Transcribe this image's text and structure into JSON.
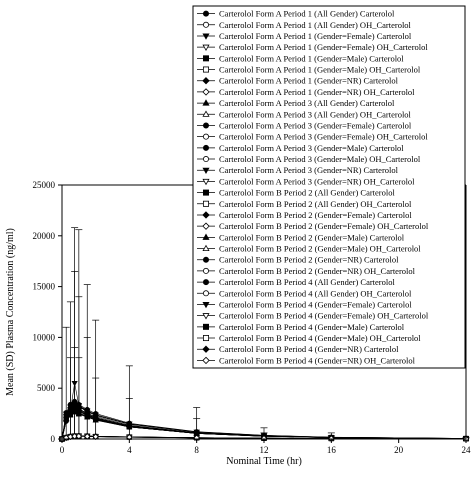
{
  "chart_data": {
    "type": "line",
    "xlabel": "Nominal Time (hr)",
    "ylabel": "Mean (SD) Plasma Concentration (ng/ml)",
    "xlim": [
      0,
      24
    ],
    "ylim": [
      0,
      25000
    ],
    "x_ticks": [
      0,
      4,
      8,
      12,
      16,
      20,
      24
    ],
    "y_ticks": [
      0,
      5000,
      10000,
      15000,
      20000,
      25000
    ],
    "grid": false,
    "legend_position": "top-right",
    "x": [
      0,
      0.25,
      0.5,
      0.75,
      1,
      1.5,
      2,
      4,
      8,
      12,
      16,
      24
    ],
    "series": [
      {
        "name": "Carterolol Form A Period 1 (All Gender)  Carterolol",
        "marker": "filled-circle",
        "values": [
          0,
          2200,
          2700,
          3000,
          2800,
          2400,
          2100,
          1300,
          600,
          300,
          150,
          50
        ]
      },
      {
        "name": "Carterolol Form A Period 1 (All Gender)  OH_Carterolol",
        "marker": "open-circle",
        "values": [
          0,
          150,
          250,
          300,
          300,
          280,
          250,
          200,
          120,
          80,
          50,
          20
        ]
      },
      {
        "name": "Carterolol Form A Period 1 (Gender=Female)  Carterolol",
        "marker": "filled-triangle-down",
        "values": [
          0,
          2500,
          3200,
          3500,
          3300,
          2800,
          2400,
          1500,
          700,
          350,
          170,
          60
        ]
      },
      {
        "name": "Carterolol Form A Period 1 (Gender=Female)  OH_Carterolol",
        "marker": "open-triangle-down",
        "values": [
          0,
          160,
          270,
          320,
          320,
          300,
          260,
          210,
          130,
          85,
          55,
          22
        ]
      },
      {
        "name": "Carterolol Form A Period 1 (Gender=Male)  Carterolol",
        "marker": "filled-square",
        "values": [
          0,
          2000,
          2400,
          2700,
          2500,
          2200,
          1900,
          1200,
          550,
          280,
          140,
          45
        ]
      },
      {
        "name": "Carterolol Form A Period 1 (Gender=Male)  OH_Carterolol",
        "marker": "open-square",
        "values": [
          0,
          140,
          230,
          280,
          290,
          270,
          240,
          190,
          115,
          75,
          48,
          18
        ]
      },
      {
        "name": "Carterolol Form A Period 1 (Gender=NR)  Carterolol",
        "marker": "filled-diamond",
        "values": [
          0,
          1800,
          2600,
          3200,
          3000,
          2500,
          2000,
          1200,
          550,
          270,
          130,
          40
        ]
      },
      {
        "name": "Carterolol Form A Period 1 (Gender=NR)  OH_Carterolol",
        "marker": "open-diamond",
        "values": [
          0,
          120,
          220,
          270,
          280,
          260,
          230,
          180,
          110,
          70,
          45,
          15
        ]
      },
      {
        "name": "Carterolol Form A Period 3 (All Gender)  Carterolol",
        "marker": "filled-triangle-up",
        "values": [
          0,
          2300,
          2900,
          3100,
          2900,
          2500,
          2200,
          1350,
          620,
          310,
          150,
          50
        ]
      },
      {
        "name": "Carterolol Form A Period 3 (All Gender)  OH_Carterolol",
        "marker": "open-triangle-up",
        "values": [
          0,
          155,
          255,
          305,
          305,
          285,
          255,
          205,
          122,
          82,
          52,
          20
        ]
      },
      {
        "name": "Carterolol Form A Period 3 (Gender=Female)  Carterolol",
        "marker": "filled-circle",
        "values": [
          0,
          2600,
          3400,
          3700,
          3400,
          2900,
          2500,
          1550,
          720,
          360,
          175,
          62
        ]
      },
      {
        "name": "Carterolol Form A Period 3 (Gender=Female)  OH_Carterolol",
        "marker": "open-circle",
        "values": [
          0,
          165,
          275,
          325,
          325,
          305,
          265,
          215,
          132,
          87,
          56,
          23
        ]
      },
      {
        "name": "Carterolol Form A Period 3 (Gender=Male)  Carterolol",
        "marker": "filled-circle",
        "values": [
          0,
          2050,
          2450,
          2750,
          2550,
          2250,
          1950,
          1220,
          560,
          285,
          142,
          46
        ]
      },
      {
        "name": "Carterolol Form A Period 3 (Gender=Male)  OH_Carterolol",
        "marker": "open-circle",
        "values": [
          0,
          142,
          232,
          282,
          292,
          272,
          242,
          192,
          116,
          76,
          49,
          18
        ]
      },
      {
        "name": "Carterolol Form A Period 3 (Gender=NR)  Carterolol",
        "marker": "filled-triangle-down",
        "values": [
          0,
          1900,
          2800,
          5500,
          3300,
          2600,
          2100,
          1250,
          560,
          275,
          132,
          41
        ]
      },
      {
        "name": "Carterolol Form A Period 3 (Gender=NR)  OH_Carterolol",
        "marker": "open-triangle-down",
        "values": [
          0,
          125,
          225,
          275,
          285,
          265,
          235,
          182,
          112,
          72,
          46,
          16
        ]
      },
      {
        "name": "Carterolol Form B Period 2 (All Gender)  Carterolol",
        "marker": "filled-square",
        "values": [
          0,
          2100,
          2600,
          2900,
          2700,
          2300,
          2000,
          1250,
          580,
          290,
          145,
          48
        ]
      },
      {
        "name": "Carterolol Form B Period 2 (All Gender)  OH_Carterolol",
        "marker": "open-square",
        "values": [
          0,
          145,
          245,
          295,
          295,
          275,
          245,
          195,
          118,
          78,
          50,
          19
        ]
      },
      {
        "name": "Carterolol Form B Period 2 (Gender=Female)  Carterolol",
        "marker": "filled-diamond",
        "values": [
          0,
          2400,
          3100,
          3400,
          3200,
          2700,
          2300,
          1450,
          680,
          340,
          165,
          58
        ]
      },
      {
        "name": "Carterolol Form B Period 2 (Gender=Female)  OH_Carterolol",
        "marker": "open-diamond",
        "values": [
          0,
          158,
          265,
          315,
          315,
          295,
          258,
          208,
          128,
          84,
          54,
          21
        ]
      },
      {
        "name": "Carterolol Form B Period 2 (Gender=Male)  Carterolol",
        "marker": "filled-triangle-up",
        "values": [
          0,
          1950,
          2350,
          2650,
          2450,
          2150,
          1850,
          1180,
          540,
          270,
          135,
          44
        ]
      },
      {
        "name": "Carterolol Form B Period 2 (Gender=Male)  OH_Carterolol",
        "marker": "open-triangle-up",
        "values": [
          0,
          138,
          228,
          278,
          288,
          268,
          238,
          188,
          114,
          74,
          47,
          17
        ]
      },
      {
        "name": "Carterolol Form B Period 2 (Gender=NR)  Carterolol",
        "marker": "filled-circle",
        "values": [
          0,
          1750,
          2500,
          3000,
          2900,
          2450,
          1950,
          1180,
          540,
          265,
          128,
          39
        ]
      },
      {
        "name": "Carterolol Form B Period 2 (Gender=NR)  OH_Carterolol",
        "marker": "open-circle",
        "values": [
          0,
          118,
          218,
          268,
          278,
          258,
          228,
          178,
          108,
          68,
          44,
          15
        ]
      },
      {
        "name": "Carterolol Form B Period 4 (All Gender)  Carterolol",
        "marker": "filled-circle",
        "values": [
          0,
          2150,
          2650,
          2950,
          2750,
          2350,
          2050,
          1280,
          590,
          295,
          148,
          49
        ]
      },
      {
        "name": "Carterolol Form B Period 4 (All Gender)  OH_Carterolol",
        "marker": "open-circle",
        "values": [
          0,
          148,
          248,
          298,
          298,
          278,
          248,
          198,
          119,
          79,
          51,
          19
        ]
      },
      {
        "name": "Carterolol Form B Period 4 (Gender=Female)  Carterolol",
        "marker": "filled-triangle-down",
        "values": [
          0,
          2450,
          3150,
          3450,
          3250,
          2750,
          2350,
          1480,
          690,
          345,
          168,
          59
        ]
      },
      {
        "name": "Carterolol Form B Period 4 (Gender=Female)  OH_Carterolol",
        "marker": "open-triangle-down",
        "values": [
          0,
          162,
          268,
          318,
          318,
          298,
          262,
          212,
          130,
          86,
          55,
          22
        ]
      },
      {
        "name": "Carterolol Form B Period 4 (Gender=Male)  Carterolol",
        "marker": "filled-square",
        "values": [
          0,
          1980,
          2380,
          2680,
          2480,
          2180,
          1880,
          1190,
          545,
          275,
          138,
          45
        ]
      },
      {
        "name": "Carterolol Form B Period 4 (Gender=Male)  OH_Carterolol",
        "marker": "open-square",
        "values": [
          0,
          139,
          229,
          279,
          289,
          269,
          239,
          189,
          115,
          75,
          48,
          18
        ]
      },
      {
        "name": "Carterolol Form B Period 4 (Gender=NR)  Carterolol",
        "marker": "filled-diamond",
        "values": [
          0,
          1780,
          2550,
          3050,
          2950,
          2480,
          1980,
          1190,
          545,
          268,
          130,
          40
        ]
      },
      {
        "name": "Carterolol Form B Period 4 (Gender=NR)  OH_Carterolol",
        "marker": "open-diamond",
        "values": [
          0,
          119,
          219,
          269,
          279,
          259,
          229,
          179,
          109,
          69,
          45,
          15
        ]
      }
    ],
    "error_bars": [
      {
        "x": 0.25,
        "low": 0,
        "high": 11000
      },
      {
        "x": 0.5,
        "low": 0,
        "high": 13500
      },
      {
        "x": 0.5,
        "low": 0,
        "high": 8000
      },
      {
        "x": 0.75,
        "low": 0,
        "high": 20800
      },
      {
        "x": 0.75,
        "low": 0,
        "high": 16500
      },
      {
        "x": 0.75,
        "low": 0,
        "high": 9000
      },
      {
        "x": 1,
        "low": 0,
        "high": 20600
      },
      {
        "x": 1,
        "low": 0,
        "high": 14000
      },
      {
        "x": 1,
        "low": 0,
        "high": 8000
      },
      {
        "x": 1.5,
        "low": 0,
        "high": 15200
      },
      {
        "x": 1.5,
        "low": 0,
        "high": 10000
      },
      {
        "x": 2,
        "low": 0,
        "high": 11700
      },
      {
        "x": 2,
        "low": 0,
        "high": 6000
      },
      {
        "x": 4,
        "low": 0,
        "high": 7200
      },
      {
        "x": 4,
        "low": 0,
        "high": 4000
      },
      {
        "x": 8,
        "low": 0,
        "high": 3100
      },
      {
        "x": 8,
        "low": 0,
        "high": 2000
      },
      {
        "x": 12,
        "low": 0,
        "high": 1100
      },
      {
        "x": 12,
        "low": 0,
        "high": 600
      },
      {
        "x": 16,
        "low": 0,
        "high": 600
      },
      {
        "x": 16,
        "low": 0,
        "high": 300
      },
      {
        "x": 24,
        "low": 0,
        "high": 150
      }
    ]
  }
}
